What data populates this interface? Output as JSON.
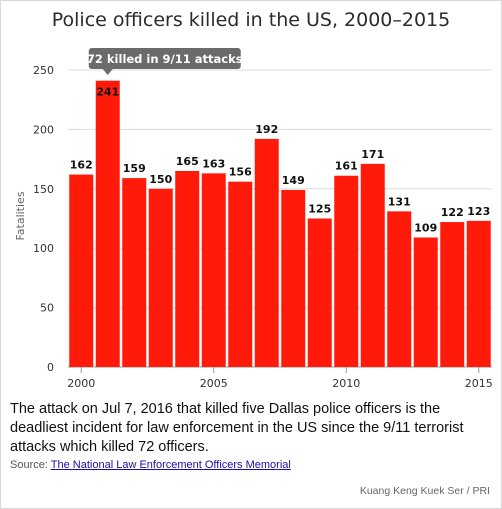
{
  "chart_data": {
    "type": "bar",
    "title": "Police officers killed in the US, 2000–2015",
    "ylabel": "Fatalities",
    "xlabel": "",
    "x": [
      2000,
      2001,
      2002,
      2003,
      2004,
      2005,
      2006,
      2007,
      2008,
      2009,
      2010,
      2011,
      2012,
      2013,
      2014,
      2015
    ],
    "values": [
      162,
      241,
      159,
      150,
      165,
      163,
      156,
      192,
      149,
      125,
      161,
      171,
      131,
      109,
      122,
      123
    ],
    "data_labels": [
      "162",
      "241",
      "159",
      "150",
      "165",
      "163",
      "156",
      "192",
      "149",
      "125",
      "161",
      "171",
      "131",
      "109",
      "122",
      "123"
    ],
    "ylim": [
      0,
      250
    ],
    "yticks": [
      0,
      50,
      100,
      150,
      200,
      250
    ],
    "ytick_labels": [
      "0",
      "50",
      "100",
      "150",
      "200",
      "250"
    ],
    "xticks": [
      2000,
      2005,
      2010,
      2015
    ],
    "xtick_labels": [
      "2000",
      "2005",
      "2010",
      "2015"
    ],
    "grid": true,
    "bar_color": "#ff1a0a",
    "annotation": {
      "x": 2001,
      "text": "72 killed in 9/11 attacks"
    }
  },
  "caption": "The attack on Jul 7, 2016 that killed five Dallas police officers is the deadliest incident for law enforcement in the US since the 9/11 terrorist attacks which killed 72 officers.",
  "source": {
    "label": "Source: ",
    "link_text": "The National Law Enforcement Officers Memorial"
  },
  "credit": "Kuang Keng Kuek Ser / PRI"
}
